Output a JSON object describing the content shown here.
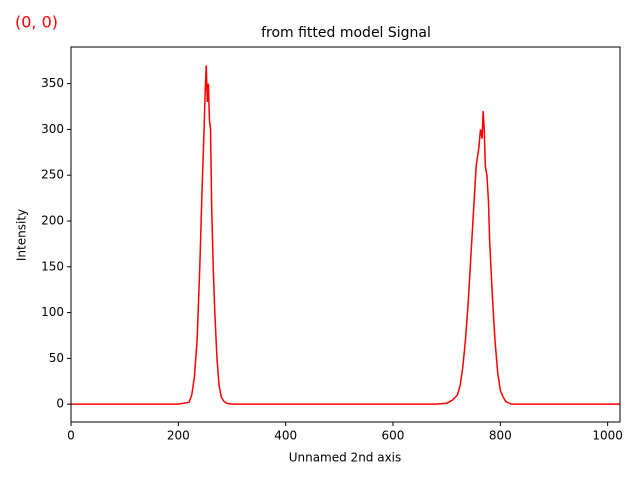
{
  "chart_data": {
    "type": "line",
    "title": "from fitted model Signal",
    "annotation": "(0, 0)",
    "x_label": "Unnamed 2nd axis",
    "y_label": "Intensity",
    "x": [
      0,
      200,
      220,
      225,
      230,
      235,
      240,
      244,
      248,
      250,
      252,
      254,
      256,
      258,
      260,
      262,
      265,
      268,
      272,
      276,
      280,
      285,
      290,
      300,
      680,
      700,
      710,
      720,
      725,
      730,
      735,
      740,
      745,
      750,
      755,
      760,
      763,
      766,
      768,
      770,
      772,
      775,
      778,
      780,
      785,
      790,
      795,
      800,
      805,
      810,
      820,
      1023
    ],
    "series": [
      {
        "color": "#ff0000",
        "values": [
          0,
          0,
          2,
          10,
          30,
          70,
          150,
          230,
          300,
          340,
          370,
          330,
          350,
          310,
          300,
          220,
          150,
          100,
          50,
          20,
          8,
          3,
          1,
          0,
          0,
          1,
          4,
          10,
          20,
          40,
          70,
          110,
          160,
          210,
          260,
          280,
          300,
          290,
          320,
          300,
          260,
          250,
          220,
          180,
          120,
          70,
          35,
          15,
          8,
          3,
          0,
          0
        ]
      }
    ],
    "xlim": [
      0,
      1023
    ],
    "ylim": [
      -19.5,
      390
    ],
    "xticks": [
      0,
      200,
      400,
      600,
      800,
      1000
    ],
    "yticks": [
      0,
      50,
      100,
      150,
      200,
      250,
      300,
      350
    ],
    "grid": false
  }
}
